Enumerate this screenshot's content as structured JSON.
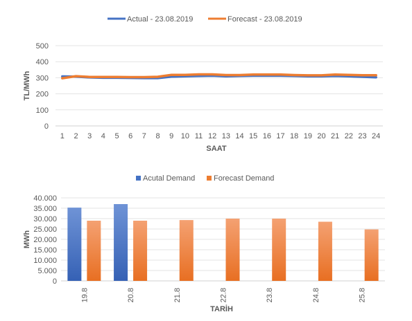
{
  "chart_data": [
    {
      "type": "line",
      "title": "",
      "xlabel": "SAAT",
      "ylabel": "TL/MWh",
      "x": [
        1,
        2,
        3,
        4,
        5,
        6,
        7,
        8,
        9,
        10,
        11,
        12,
        13,
        14,
        15,
        16,
        17,
        18,
        19,
        20,
        21,
        22,
        23,
        24
      ],
      "ylim": [
        0,
        500
      ],
      "yticks": [
        "0",
        "100",
        "200",
        "300",
        "400",
        "500"
      ],
      "grid": true,
      "legend": "top",
      "series": [
        {
          "name": "Actual - 23.08.2019",
          "color": "#4472C4",
          "values": [
            308,
            307,
            302,
            300,
            300,
            299,
            298,
            298,
            307,
            309,
            311,
            313,
            309,
            311,
            313,
            313,
            313,
            311,
            309,
            309,
            311,
            309,
            306,
            303
          ]
        },
        {
          "name": "Forecast - 23.08.2019",
          "color": "#ED7D31",
          "values": [
            297,
            310,
            305,
            305,
            305,
            304,
            304,
            306,
            318,
            318,
            321,
            321,
            317,
            317,
            320,
            320,
            320,
            317,
            315,
            315,
            320,
            318,
            316,
            316
          ]
        }
      ]
    },
    {
      "type": "bar",
      "title": "",
      "xlabel": "TARİH",
      "ylabel": "MWh",
      "categories": [
        "19.8",
        "20.8",
        "21.8",
        "22.8",
        "23.8",
        "24.8",
        "25.8"
      ],
      "ylim": [
        0,
        40000
      ],
      "yticks": [
        "0",
        "5.000",
        "10.000",
        "15.000",
        "20.000",
        "25.000",
        "30.000",
        "35.000",
        "40.000"
      ],
      "grid": true,
      "legend": "top",
      "series": [
        {
          "name": "Acutal Demand",
          "color": "#4472C4",
          "values": [
            35300,
            37000,
            null,
            null,
            null,
            null,
            null
          ]
        },
        {
          "name": "Forecast Demand",
          "color": "#ED7D31",
          "values": [
            29000,
            29000,
            29300,
            30000,
            30000,
            28500,
            24800
          ]
        }
      ]
    }
  ]
}
